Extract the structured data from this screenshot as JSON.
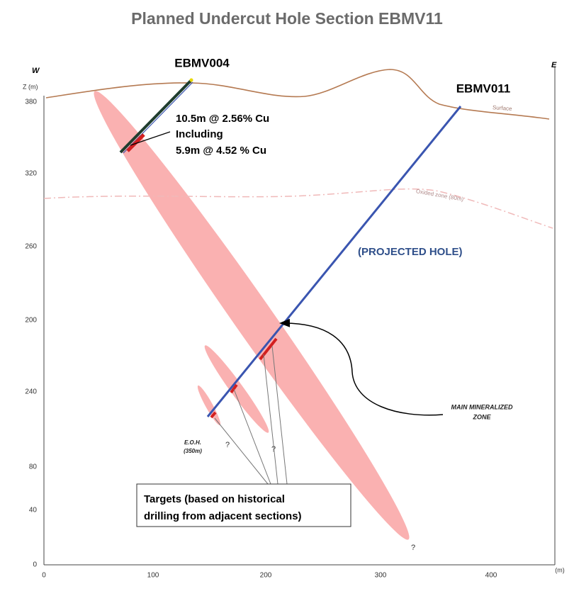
{
  "title": "Planned Undercut Hole Section EBMV11",
  "axis": {
    "west": "W",
    "east": "E",
    "z_label": "Z (m)",
    "y_labels": [
      380,
      320,
      260,
      200,
      240,
      80,
      40,
      0
    ],
    "x_labels": [
      0,
      100,
      200,
      300,
      400
    ],
    "x_unit": "(m)"
  },
  "labels": {
    "surface": "Surface",
    "oxidized_zone": "Oxided zone (80m)",
    "hole_1": "EBMV004",
    "hole_2": "EBMV011",
    "projected": "(PROJECTED HOLE)",
    "intercept": [
      "10.5m @ 2.56% Cu",
      "Including",
      "5.9m @ 4.52 % Cu"
    ],
    "zone": [
      "MAIN MINERALIZED",
      "ZONE"
    ],
    "eoh": [
      "E.O.H.",
      "(350m)"
    ],
    "unknown": [
      "?",
      "?",
      "?"
    ],
    "targets": [
      "Targets (based on historical",
      "drilling from adjacent sections)"
    ]
  }
}
